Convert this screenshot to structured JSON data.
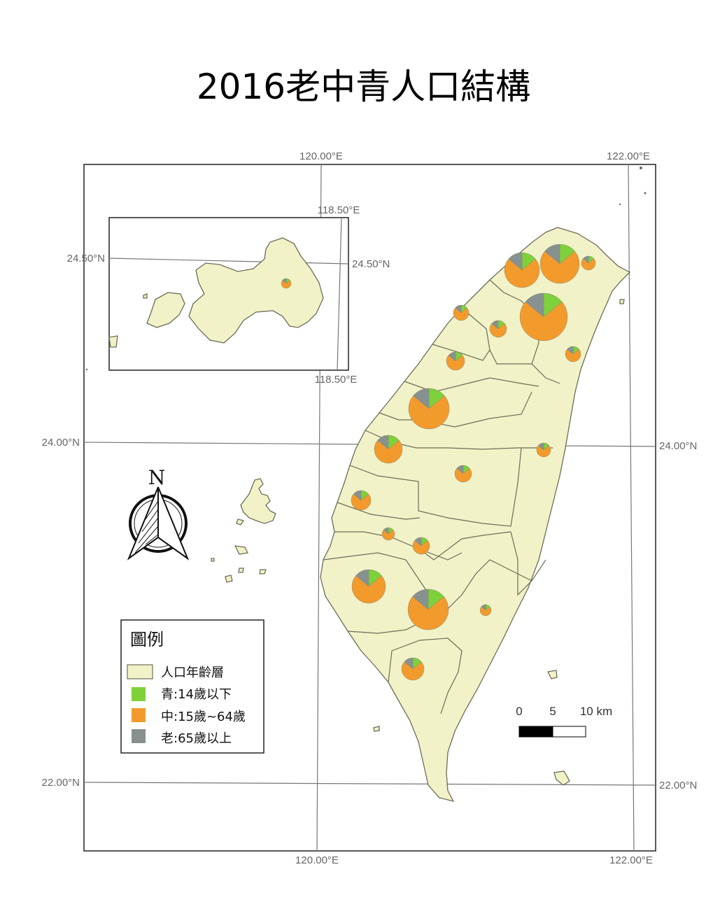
{
  "title": "2016老中青人口結構",
  "colors": {
    "land": "#f1f2c8",
    "youth": "#7ed13a",
    "middle": "#f39a2d",
    "elder": "#87918f"
  },
  "graticule_labels": {
    "top": [
      "120.00°E",
      "122.00°E"
    ],
    "bottom": [
      "120.00°E",
      "122.00°E"
    ],
    "left": [
      "24.50°N",
      "24.00°N",
      "22.00°N"
    ],
    "right": [
      "24.00°N",
      "22.00°N"
    ],
    "inset_top": "118.50°E",
    "inset_bottom": "118.50°E",
    "inset_right": "24.50°N"
  },
  "north_arrow": {
    "label": "N"
  },
  "legend": {
    "title": "圖例",
    "items": [
      {
        "label": "人口年齡層",
        "color": "#f1f2c8"
      },
      {
        "label": "青:14歲以下",
        "color": "#7ed13a"
      },
      {
        "label": "中:15歲~64歲",
        "color": "#f39a2d"
      },
      {
        "label": "老:65歲以上",
        "color": "#87918f"
      }
    ]
  },
  "scale_bar": {
    "labels": [
      "0",
      "5",
      "10 km"
    ]
  },
  "pie_charts": [
    {
      "shares": [
        0.14,
        0.72,
        0.14
      ]
    },
    {
      "shares": [
        0.14,
        0.72,
        0.14
      ]
    },
    {
      "shares": [
        0.14,
        0.72,
        0.14
      ]
    },
    {
      "shares": [
        0.14,
        0.72,
        0.14
      ]
    },
    {
      "shares": [
        0.14,
        0.72,
        0.14
      ]
    },
    {
      "shares": [
        0.14,
        0.72,
        0.14
      ]
    },
    {
      "shares": [
        0.14,
        0.72,
        0.14
      ]
    },
    {
      "shares": [
        0.14,
        0.72,
        0.14
      ]
    },
    {
      "shares": [
        0.14,
        0.72,
        0.14
      ]
    },
    {
      "shares": [
        0.14,
        0.72,
        0.14
      ]
    },
    {
      "shares": [
        0.14,
        0.72,
        0.14
      ]
    },
    {
      "shares": [
        0.14,
        0.72,
        0.14
      ]
    },
    {
      "shares": [
        0.14,
        0.72,
        0.14
      ]
    },
    {
      "shares": [
        0.14,
        0.72,
        0.14
      ]
    },
    {
      "shares": [
        0.14,
        0.72,
        0.14
      ]
    },
    {
      "shares": [
        0.14,
        0.72,
        0.14
      ]
    },
    {
      "shares": [
        0.14,
        0.72,
        0.14
      ]
    },
    {
      "shares": [
        0.14,
        0.72,
        0.14
      ]
    },
    {
      "shares": [
        0.14,
        0.72,
        0.14
      ]
    },
    {
      "shares": [
        0.14,
        0.72,
        0.14
      ]
    }
  ]
}
